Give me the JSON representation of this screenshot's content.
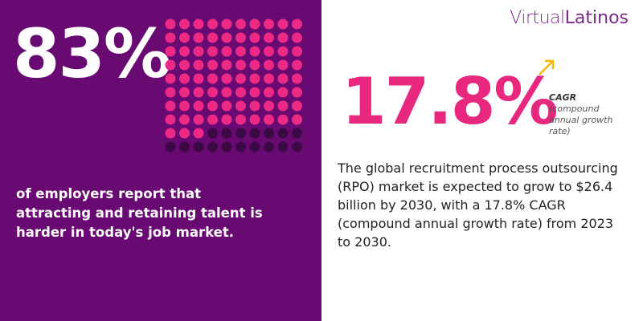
{
  "logo": {
    "part1": "Virtual",
    "part2": "Latinos"
  },
  "left": {
    "stat": {
      "value": 83,
      "label": "83%"
    },
    "text": "of employers report that attracting and retaining talent is harder in today's job market."
  },
  "right": {
    "stat": "17.8%",
    "stat_label": "CAGR",
    "stat_note": "(compound annual growth rate)",
    "text": "The global recruitment process outsourcing (RPO) market is expected to grow to $26.4 billion by 2030, with a 17.8% CAGR (compound annual growth rate) from 2023 to 2030."
  }
}
